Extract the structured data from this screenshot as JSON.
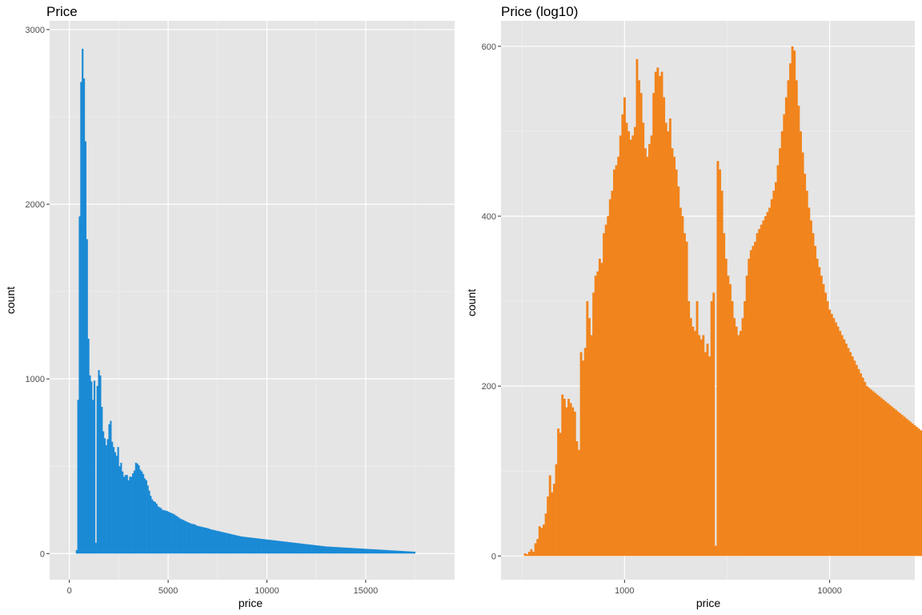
{
  "chart_data": [
    {
      "type": "bar",
      "title": "Price",
      "xlabel": "price",
      "ylabel": "count",
      "xlim": [
        -1000,
        19500
      ],
      "ylim": [
        -150,
        3050
      ],
      "x_scale": "linear",
      "x_ticks": [
        0,
        5000,
        10000,
        15000
      ],
      "x_tick_labels": [
        "0",
        "5000",
        "10000",
        "15000"
      ],
      "y_ticks": [
        0,
        1000,
        2000,
        3000
      ],
      "y_tick_labels": [
        "0",
        "1000",
        "2000",
        "3000"
      ],
      "grid": true,
      "color": "#1a8ad5",
      "x_start": 326,
      "bin_width": 75,
      "values": [
        20,
        880,
        1930,
        2700,
        2890,
        2720,
        2360,
        1800,
        1230,
        1020,
        985,
        880,
        990,
        62,
        960,
        1050,
        1020,
        840,
        700,
        660,
        620,
        655,
        740,
        760,
        640,
        610,
        580,
        560,
        610,
        500,
        520,
        470,
        440,
        450,
        450,
        420,
        440,
        440,
        460,
        475,
        520,
        515,
        505,
        480,
        470,
        455,
        430,
        420,
        390,
        360,
        330,
        310,
        300,
        295,
        285,
        270,
        265,
        260,
        250,
        248,
        246,
        244,
        240,
        235,
        232,
        228,
        224,
        218,
        212,
        206,
        200,
        196,
        192,
        188,
        184,
        180,
        176,
        172,
        170,
        168,
        166,
        160,
        158,
        156,
        154,
        152,
        150,
        148,
        146,
        144,
        140,
        138,
        136,
        134,
        132,
        130,
        128,
        126,
        124,
        122,
        120,
        118,
        116,
        114,
        112,
        110,
        108,
        106,
        104,
        102,
        100,
        98,
        97,
        96,
        95,
        94,
        93,
        92,
        91,
        90,
        89,
        88,
        87,
        86,
        85,
        84,
        83,
        82,
        81,
        80,
        79,
        78,
        77,
        76,
        75,
        74,
        73,
        72,
        71,
        70,
        69,
        68,
        67,
        66,
        65,
        64,
        63,
        62,
        61,
        60,
        59,
        58,
        57,
        56,
        55,
        54,
        53,
        52,
        51,
        50,
        49,
        48,
        47,
        46,
        45,
        44,
        43,
        42,
        41,
        40,
        40,
        39,
        39,
        38,
        38,
        37,
        37,
        36,
        36,
        35,
        35,
        34,
        34,
        33,
        33,
        32,
        32,
        31,
        31,
        30,
        30,
        29,
        29,
        28,
        28,
        27,
        27,
        26,
        26,
        25,
        25,
        24,
        24,
        23,
        23,
        22,
        22,
        21,
        21,
        20,
        20,
        19,
        19,
        18,
        18,
        17,
        17,
        16,
        16,
        15,
        15,
        14,
        14,
        13,
        13,
        12,
        12,
        11,
        11
      ]
    },
    {
      "type": "bar",
      "title": "Price (log10)",
      "xlabel": "price",
      "ylabel": "count",
      "xlim": [
        250,
        26000
      ],
      "ylim": [
        -28,
        630
      ],
      "x_scale": "log10",
      "x_ticks": [
        1000,
        10000
      ],
      "x_tick_labels": [
        "1000",
        "10000"
      ],
      "y_ticks": [
        0,
        200,
        400,
        600
      ],
      "y_tick_labels": [
        "0",
        "200",
        "400",
        "600"
      ],
      "grid": true,
      "color": "#f1841c",
      "log_start": 2.51,
      "log_bin_width": 0.0101,
      "values": [
        3,
        2,
        5,
        8,
        5,
        15,
        20,
        35,
        33,
        37,
        50,
        70,
        95,
        75,
        85,
        108,
        150,
        145,
        190,
        185,
        175,
        185,
        180,
        175,
        170,
        135,
        125,
        240,
        230,
        245,
        300,
        280,
        260,
        310,
        330,
        335,
        350,
        345,
        380,
        390,
        400,
        420,
        430,
        455,
        460,
        470,
        495,
        520,
        540,
        510,
        500,
        490,
        495,
        505,
        585,
        560,
        545,
        510,
        480,
        470,
        485,
        495,
        545,
        570,
        575,
        565,
        570,
        540,
        510,
        500,
        515,
        480,
        470,
        455,
        435,
        410,
        400,
        380,
        370,
        300,
        280,
        270,
        265,
        300,
        260,
        255,
        260,
        240,
        250,
        235,
        300,
        310,
        12,
        465,
        455,
        430,
        380,
        350,
        330,
        320,
        300,
        280,
        270,
        260,
        265,
        280,
        300,
        330,
        350,
        360,
        365,
        370,
        380,
        385,
        390,
        395,
        400,
        405,
        410,
        420,
        430,
        440,
        460,
        480,
        500,
        520,
        540,
        560,
        580,
        600,
        595,
        560,
        530,
        500,
        475,
        450,
        430,
        410,
        395,
        380,
        365,
        350,
        340,
        330,
        320,
        310,
        300,
        290,
        285,
        280,
        275,
        270,
        265,
        260,
        255,
        250,
        245,
        240,
        235,
        230,
        225,
        220,
        215,
        210,
        205,
        200,
        198,
        196,
        194,
        192,
        190,
        188,
        186,
        184,
        182,
        180,
        178,
        176,
        174,
        172,
        170,
        168,
        166,
        164,
        162,
        160,
        158,
        156,
        154,
        152,
        150,
        148,
        146,
        144,
        142
      ]
    }
  ]
}
